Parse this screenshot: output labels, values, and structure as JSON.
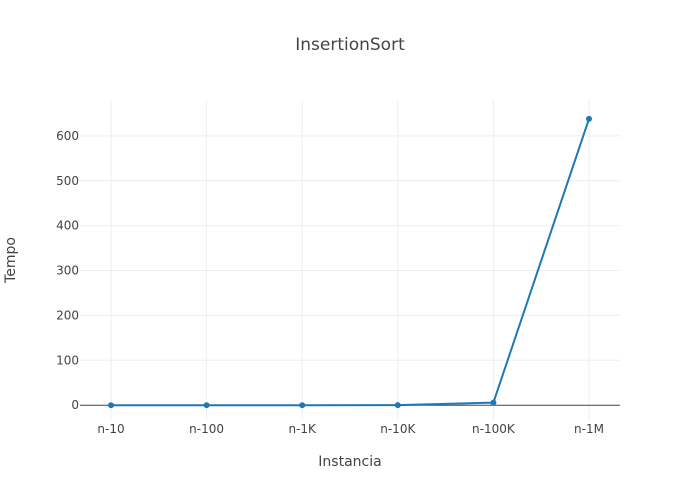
{
  "chart_data": {
    "type": "line",
    "title": "InsertionSort",
    "xlabel": "Instancia",
    "ylabel": "Tempo",
    "categories": [
      "n-10",
      "n-100",
      "n-1K",
      "n-10K",
      "n-100K",
      "n-1M"
    ],
    "series": [
      {
        "values": [
          0,
          0,
          0,
          0.1,
          5.8,
          638
        ],
        "color": "#1f77b4"
      }
    ],
    "yticks": [
      0,
      100,
      200,
      300,
      400,
      500,
      600
    ],
    "ylim": [
      -33,
      680
    ],
    "grid": true,
    "legend": false
  }
}
